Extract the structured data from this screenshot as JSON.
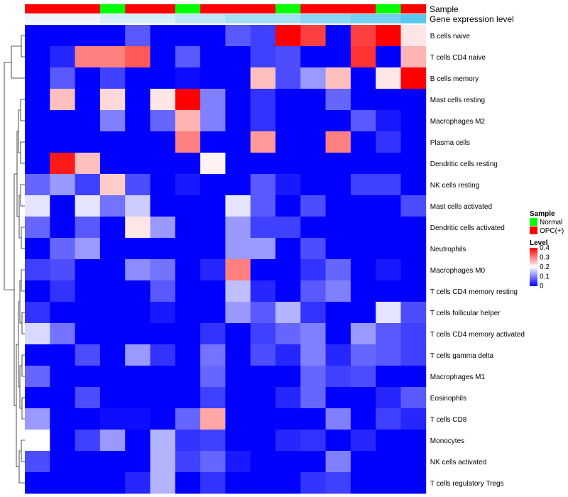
{
  "chart_data": {
    "type": "heatmap",
    "annotation_titles": [
      "Sample",
      "Gene expression level"
    ],
    "sample_groups": [
      "OPC(+)",
      "OPC(+)",
      "OPC(+)",
      "Normal",
      "OPC(+)",
      "OPC(+)",
      "Normal",
      "OPC(+)",
      "OPC(+)",
      "OPC(+)",
      "Normal",
      "OPC(+)",
      "OPC(+)",
      "OPC(+)",
      "Normal",
      "OPC(+)"
    ],
    "expression_levels": [
      0.0,
      0.0,
      0.0,
      0.1,
      0.1,
      0.1,
      0.2,
      0.2,
      0.3,
      0.3,
      0.3,
      0.4,
      0.4,
      0.5,
      0.5,
      0.6
    ],
    "row_labels": [
      "B cells naive",
      "T cells CD4 naive",
      "B cells memory",
      "Mast cells resting",
      "Macrophages M2",
      "Plasma cells",
      "Dendritic cells resting",
      "NK cells resting",
      "Mast cells activated",
      "Dendritic cells activated",
      "Neutrophils",
      "Macrophages M0",
      "T cells CD4 memory resting",
      "T cells follicular helper",
      "T cells CD4 memory activated",
      "T cells gamma delta",
      "Macrophages M1",
      "Eosinophils",
      "T cells CD8",
      "Monocytes",
      "NK cells activated",
      "T cells regulatory  Tregs"
    ],
    "values": [
      [
        0,
        0,
        0,
        0,
        0.07,
        0,
        0,
        0,
        0.07,
        0.05,
        0.4,
        0.35,
        0,
        0.35,
        0.4,
        0.22
      ],
      [
        0,
        0.03,
        0.3,
        0.3,
        0.33,
        0,
        0.07,
        0,
        0,
        0.05,
        0.06,
        0,
        0,
        0.36,
        0,
        0.26
      ],
      [
        0,
        0.07,
        0,
        0.05,
        0,
        0,
        0.01,
        0,
        0,
        0.25,
        0.06,
        0.12,
        0.25,
        0,
        0.22,
        0.4
      ],
      [
        0,
        0.25,
        0,
        0.23,
        0,
        0.22,
        0.4,
        0.1,
        0,
        0.04,
        0,
        0,
        0.08,
        0,
        0,
        0
      ],
      [
        0,
        0,
        0,
        0.1,
        0,
        0.08,
        0.26,
        0.1,
        0,
        0.04,
        0,
        0,
        0,
        0.07,
        0.02,
        0
      ],
      [
        0,
        0,
        0,
        0,
        0,
        0,
        0.3,
        0,
        0,
        0.28,
        0,
        0,
        0.3,
        0,
        0.04,
        0
      ],
      [
        0,
        0.38,
        0.25,
        0,
        0,
        0,
        0,
        0.21,
        0,
        0,
        0,
        0,
        0,
        0,
        0,
        0
      ],
      [
        0.08,
        0.12,
        0.05,
        0.24,
        0.06,
        0,
        0.02,
        0,
        0,
        0.07,
        0.02,
        0,
        0,
        0.05,
        0.05,
        0
      ],
      [
        0.18,
        0,
        0.18,
        0.09,
        0.16,
        0,
        0,
        0,
        0.18,
        0.07,
        0,
        0.06,
        0,
        0,
        0,
        0.06
      ],
      [
        0.08,
        0,
        0.07,
        0,
        0.22,
        0.12,
        0,
        0,
        0.12,
        0.05,
        0.05,
        0,
        0,
        0,
        0,
        0
      ],
      [
        0,
        0.08,
        0.12,
        0,
        0,
        0,
        0,
        0,
        0.12,
        0.12,
        0,
        0.06,
        0,
        0,
        0,
        0
      ],
      [
        0.05,
        0.06,
        0,
        0,
        0.11,
        0.09,
        0,
        0.03,
        0.3,
        0,
        0,
        0.04,
        0.08,
        0,
        0.02,
        0
      ],
      [
        0,
        0.04,
        0,
        0,
        0,
        0.07,
        0,
        0,
        0.15,
        0.03,
        0,
        0.07,
        0.1,
        0,
        0,
        0
      ],
      [
        0.04,
        0,
        0,
        0,
        0,
        0.02,
        0,
        0,
        0.12,
        0.07,
        0.14,
        0.04,
        0,
        0,
        0.18,
        0.06
      ],
      [
        0.17,
        0.09,
        0,
        0,
        0,
        0,
        0,
        0.04,
        0,
        0.05,
        0.08,
        0.1,
        0,
        0.12,
        0.07,
        0.05
      ],
      [
        0,
        0,
        0.06,
        0,
        0.12,
        0.04,
        0,
        0.09,
        0,
        0.06,
        0.03,
        0.1,
        0.03,
        0.08,
        0.07,
        0.05
      ],
      [
        0.08,
        0,
        0,
        0,
        0,
        0,
        0,
        0.08,
        0,
        0,
        0,
        0.08,
        0.05,
        0.06,
        0,
        0
      ],
      [
        0,
        0,
        0.06,
        0,
        0,
        0,
        0,
        0.05,
        0,
        0,
        0.03,
        0.08,
        0,
        0,
        0.03,
        0.07
      ],
      [
        0.12,
        0,
        0,
        0.01,
        0.01,
        0,
        0.08,
        0.27,
        0,
        0,
        0,
        0,
        0.1,
        0,
        0.05,
        0.03
      ],
      [
        0.2,
        0,
        0.05,
        0.12,
        0,
        0.14,
        0.04,
        0.05,
        0,
        0,
        0.03,
        0.04,
        0,
        0.03,
        0,
        0
      ],
      [
        0.06,
        0,
        0,
        0,
        0,
        0.14,
        0.05,
        0.08,
        0.02,
        0,
        0,
        0,
        0.1,
        0,
        0,
        0
      ],
      [
        0,
        0,
        0,
        0,
        0.03,
        0.14,
        0,
        0.04,
        0,
        0,
        0,
        0.04,
        0.05,
        0,
        0,
        0
      ]
    ],
    "legend": {
      "sample_title": "Sample",
      "sample_entries": [
        "Normal",
        "OPC(+)"
      ],
      "level_title": "Level",
      "level_ticks": [
        "0.4",
        "0.3",
        "0.2",
        "0.1",
        "0"
      ],
      "level_range": [
        0,
        0.4
      ]
    }
  },
  "colors": {
    "low": "#0000ff",
    "mid": "#ffffff",
    "high": "#ff0000",
    "normal": "#00ff00",
    "opc": "#ff0000",
    "level_low": "#eef6fc",
    "level_high": "#5bc7f0"
  }
}
